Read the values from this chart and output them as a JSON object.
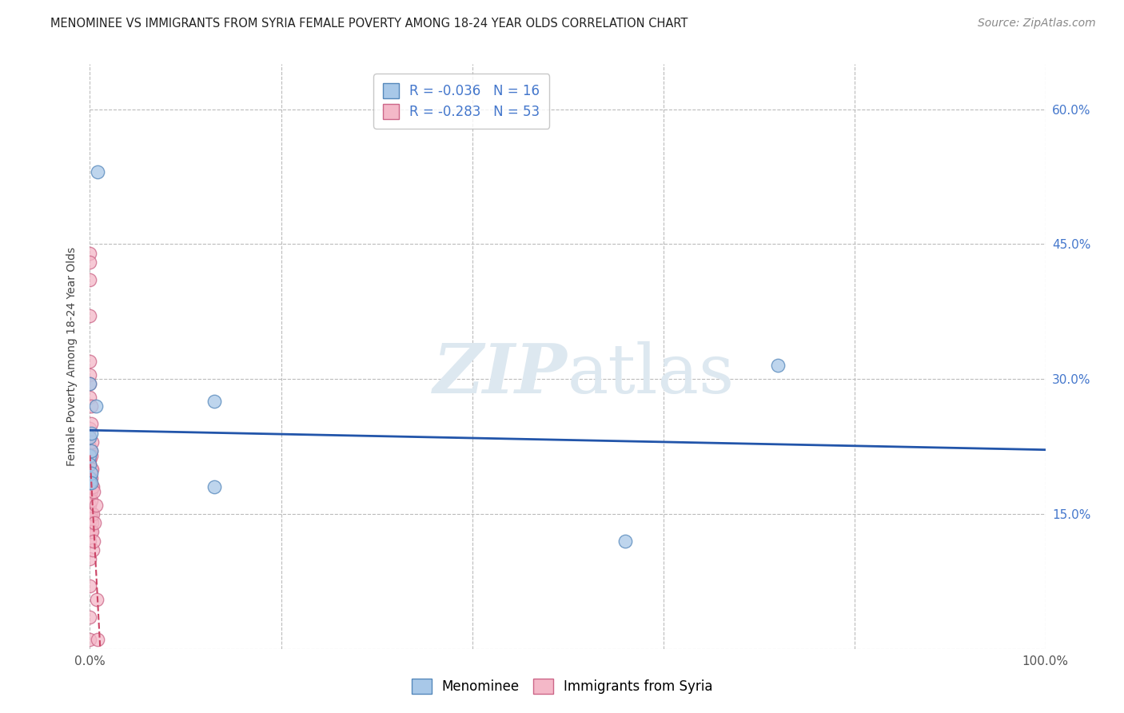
{
  "title": "MENOMINEE VS IMMIGRANTS FROM SYRIA FEMALE POVERTY AMONG 18-24 YEAR OLDS CORRELATION CHART",
  "source": "Source: ZipAtlas.com",
  "ylabel": "Female Poverty Among 18-24 Year Olds",
  "xlim": [
    0,
    1.0
  ],
  "ylim": [
    0,
    0.65
  ],
  "xticks": [
    0.0,
    0.2,
    0.4,
    0.6,
    0.8,
    1.0
  ],
  "xticklabels": [
    "0.0%",
    "",
    "",
    "",
    "",
    "100.0%"
  ],
  "yticks": [
    0.0,
    0.15,
    0.3,
    0.45,
    0.6
  ],
  "yticklabels_right": [
    "",
    "15.0%",
    "30.0%",
    "45.0%",
    "60.0%"
  ],
  "legend_blue_r": "-0.036",
  "legend_blue_n": "16",
  "legend_pink_r": "-0.283",
  "legend_pink_n": "53",
  "blue_color": "#a8c8e8",
  "pink_color": "#f4b8c8",
  "blue_edge_color": "#5588bb",
  "pink_edge_color": "#cc6688",
  "trend_blue_color": "#2255aa",
  "trend_pink_color": "#cc4466",
  "background_color": "#ffffff",
  "grid_color": "#bbbbbb",
  "watermark_color": "#dde8f0",
  "menominee_x": [
    0.008,
    0.0,
    0.0,
    0.0,
    0.0,
    0.0,
    0.0,
    0.001,
    0.001,
    0.001,
    0.001,
    0.006,
    0.13,
    0.13,
    0.56,
    0.72
  ],
  "menominee_y": [
    0.53,
    0.295,
    0.235,
    0.215,
    0.205,
    0.19,
    0.185,
    0.24,
    0.22,
    0.195,
    0.185,
    0.27,
    0.275,
    0.18,
    0.12,
    0.315
  ],
  "syria_x": [
    0.0,
    0.0,
    0.0,
    0.0,
    0.0,
    0.0,
    0.0,
    0.0,
    0.0,
    0.0,
    0.0,
    0.0,
    0.0,
    0.0,
    0.0,
    0.0,
    0.0,
    0.0,
    0.0,
    0.0,
    0.0,
    0.0,
    0.0,
    0.0,
    0.0,
    0.0,
    0.0,
    0.0,
    0.001,
    0.001,
    0.001,
    0.001,
    0.001,
    0.001,
    0.001,
    0.001,
    0.001,
    0.001,
    0.001,
    0.002,
    0.002,
    0.002,
    0.002,
    0.002,
    0.003,
    0.003,
    0.003,
    0.004,
    0.004,
    0.005,
    0.006,
    0.007,
    0.008
  ],
  "syria_y": [
    0.44,
    0.43,
    0.41,
    0.37,
    0.32,
    0.305,
    0.295,
    0.28,
    0.245,
    0.235,
    0.225,
    0.22,
    0.21,
    0.21,
    0.205,
    0.19,
    0.185,
    0.175,
    0.175,
    0.16,
    0.15,
    0.14,
    0.13,
    0.12,
    0.1,
    0.07,
    0.035,
    0.01,
    0.27,
    0.25,
    0.22,
    0.215,
    0.2,
    0.19,
    0.175,
    0.165,
    0.15,
    0.145,
    0.13,
    0.23,
    0.2,
    0.18,
    0.14,
    0.13,
    0.18,
    0.15,
    0.11,
    0.175,
    0.12,
    0.14,
    0.16,
    0.055,
    0.01
  ],
  "title_fontsize": 10.5,
  "source_fontsize": 10,
  "axis_label_fontsize": 10,
  "tick_fontsize": 11,
  "legend_fontsize": 12
}
